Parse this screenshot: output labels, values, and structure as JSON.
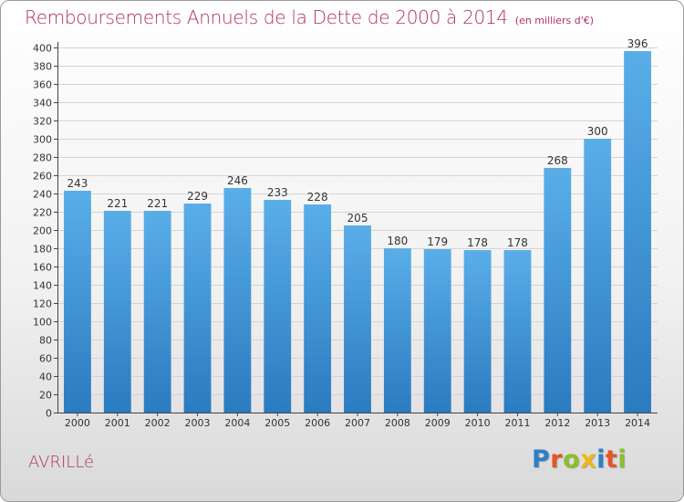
{
  "header": {
    "title": "Remboursements Annuels de la Dette de 2000 à 2014",
    "unit": "(en milliers d'€)"
  },
  "footer": {
    "city": "AVRILLé",
    "logo": {
      "text": "Proxiti",
      "letters": [
        {
          "char": "P",
          "color": "#2f7fc6"
        },
        {
          "char": "r",
          "color": "#e2572a"
        },
        {
          "char": "o",
          "color": "#8abf2d"
        },
        {
          "char": "x",
          "color": "#f0b817"
        },
        {
          "char": "i",
          "color": "#2f7fc6"
        },
        {
          "char": "t",
          "color": "#e2572a"
        },
        {
          "char": "i",
          "color": "#8abf2d"
        }
      ]
    }
  },
  "colors": {
    "title": "#b0306a",
    "bar_top": "#5aaee8",
    "bar_bottom": "#2a7bc0",
    "grid": "#d4d4d4",
    "axis": "#444444"
  },
  "chart_data": {
    "type": "bar",
    "title": "Remboursements Annuels de la Dette de 2000 à 2014",
    "subtitle": "(en milliers d'€)",
    "xlabel": "",
    "ylabel": "",
    "categories": [
      "2000",
      "2001",
      "2002",
      "2003",
      "2004",
      "2005",
      "2006",
      "2007",
      "2008",
      "2009",
      "2010",
      "2011",
      "2012",
      "2013",
      "2014"
    ],
    "values": [
      243,
      221,
      221,
      229,
      246,
      233,
      228,
      205,
      180,
      179,
      178,
      178,
      268,
      300,
      396
    ],
    "data_labels": [
      "243",
      "221",
      "221",
      "229",
      "246",
      "233",
      "228",
      "205",
      "180",
      "179",
      "178",
      "178",
      "268",
      "300",
      "396"
    ],
    "ylim": [
      0,
      400
    ],
    "ytick_step": 20,
    "grid": true,
    "legend": "none"
  }
}
